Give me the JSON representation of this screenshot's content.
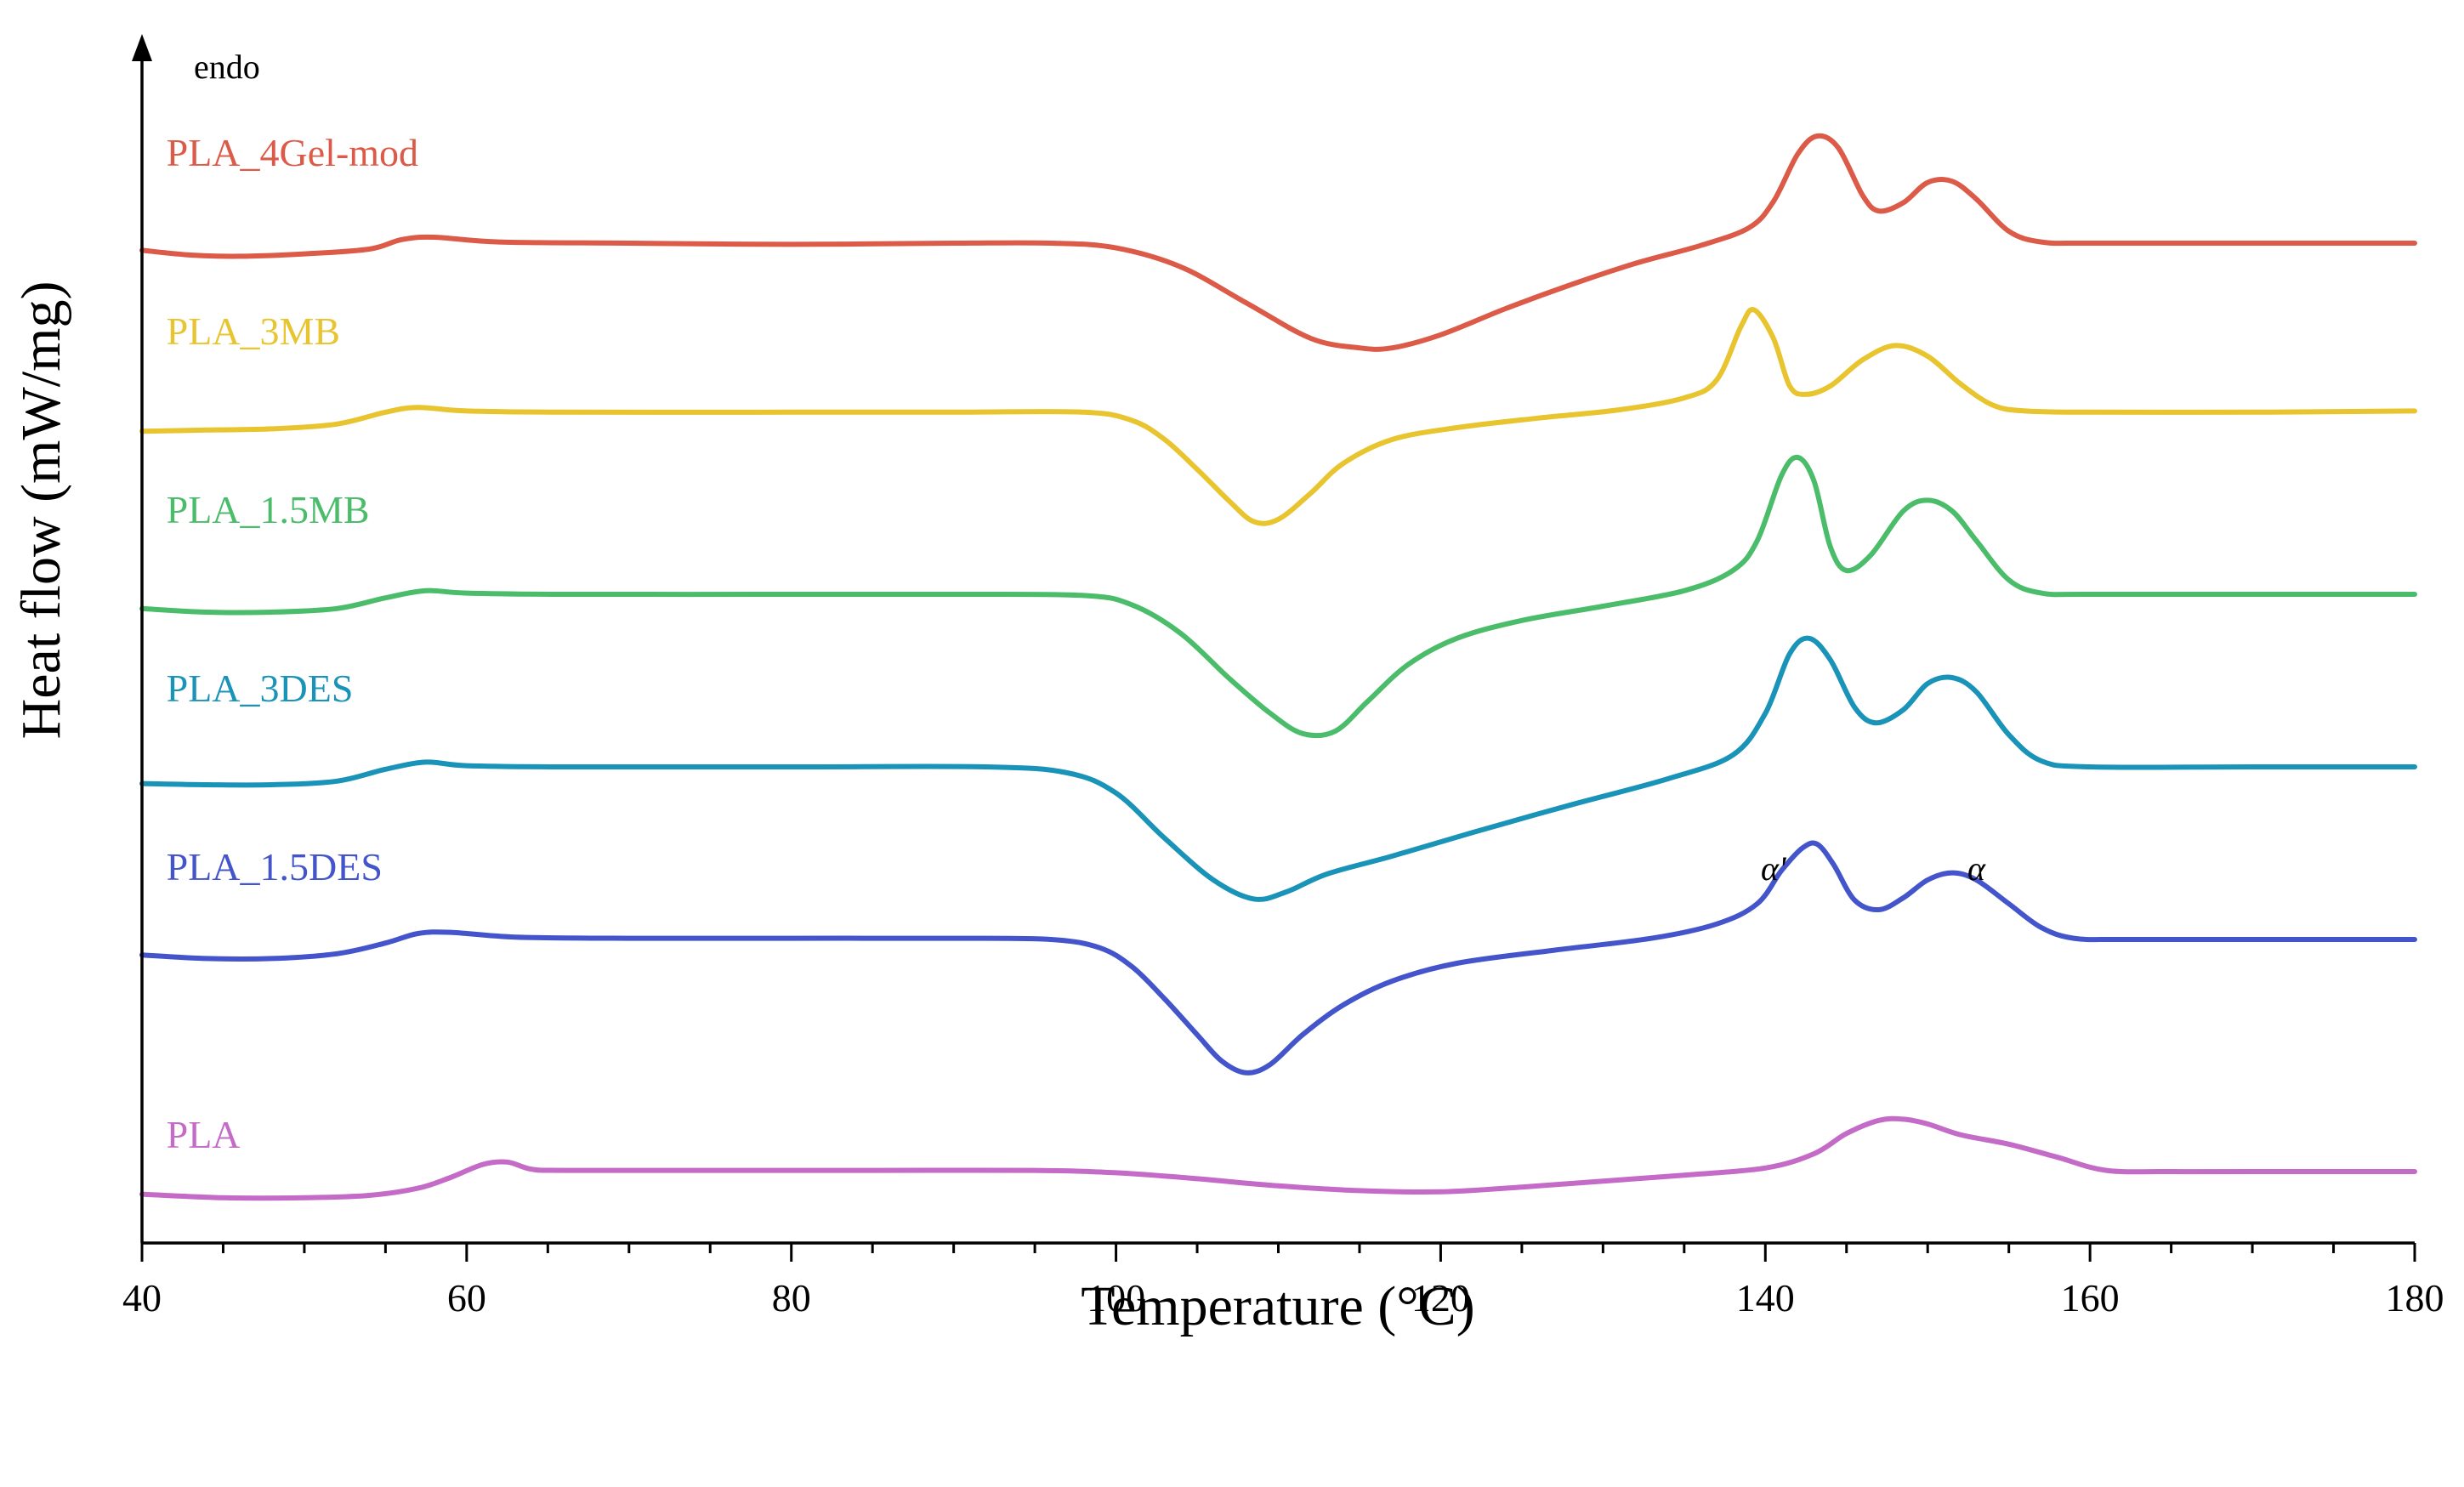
{
  "chart_data": {
    "type": "line",
    "title": "",
    "xlabel": "Temperature (°C)",
    "ylabel": "Heat flow (mW/mg)",
    "xlim": [
      40,
      180
    ],
    "xticks": [
      40,
      60,
      80,
      100,
      120,
      140,
      160,
      180
    ],
    "xtick_labels": [
      "40",
      "60",
      "80",
      "100",
      "120",
      "140",
      "160",
      "180"
    ],
    "ylim": [
      0,
      100
    ],
    "yticks_shown": false,
    "endo_label": "endo",
    "annotations": [
      {
        "text": "α'",
        "x": 140.5,
        "y": 30.5
      },
      {
        "text": "α",
        "x": 153,
        "y": 30.5
      }
    ],
    "series": [
      {
        "name": "PLA_4Gel-mod",
        "color": "#dc5a48",
        "label_x": 41.5,
        "label_y": 90.5,
        "points": [
          [
            40,
            83.4
          ],
          [
            43,
            83.0
          ],
          [
            46,
            82.9
          ],
          [
            50,
            83.1
          ],
          [
            54,
            83.5
          ],
          [
            56,
            84.3
          ],
          [
            58,
            84.5
          ],
          [
            62,
            84.1
          ],
          [
            70,
            84.0
          ],
          [
            80,
            83.9
          ],
          [
            90,
            84.0
          ],
          [
            96,
            84.0
          ],
          [
            100,
            83.6
          ],
          [
            104,
            82.0
          ],
          [
            108,
            79.0
          ],
          [
            112,
            76.0
          ],
          [
            115,
            75.2
          ],
          [
            117,
            75.2
          ],
          [
            120,
            76.3
          ],
          [
            124,
            78.5
          ],
          [
            128,
            80.5
          ],
          [
            132,
            82.3
          ],
          [
            136,
            83.8
          ],
          [
            139,
            85.3
          ],
          [
            140.5,
            87.5
          ],
          [
            142,
            91.5
          ],
          [
            143.2,
            93.0
          ],
          [
            144.5,
            92.0
          ],
          [
            146,
            88.0
          ],
          [
            147,
            86.7
          ],
          [
            148.5,
            87.4
          ],
          [
            150,
            89.1
          ],
          [
            151.5,
            89.2
          ],
          [
            153,
            87.7
          ],
          [
            155,
            85.0
          ],
          [
            157,
            84.1
          ],
          [
            160,
            84.0
          ],
          [
            170,
            84.0
          ],
          [
            180,
            84.0
          ]
        ]
      },
      {
        "name": "PLA_3MB",
        "color": "#e8c42f",
        "label_x": 41.5,
        "label_y": 75.5,
        "points": [
          [
            40,
            68.2
          ],
          [
            44,
            68.3
          ],
          [
            48,
            68.4
          ],
          [
            52,
            68.8
          ],
          [
            55,
            69.8
          ],
          [
            57,
            70.2
          ],
          [
            60,
            69.9
          ],
          [
            66,
            69.8
          ],
          [
            80,
            69.8
          ],
          [
            90,
            69.8
          ],
          [
            98,
            69.8
          ],
          [
            101,
            69.1
          ],
          [
            103,
            67.5
          ],
          [
            105,
            65.0
          ],
          [
            107,
            62.3
          ],
          [
            108.5,
            60.6
          ],
          [
            110,
            60.8
          ],
          [
            112,
            63.0
          ],
          [
            114,
            65.5
          ],
          [
            117,
            67.5
          ],
          [
            121,
            68.5
          ],
          [
            126,
            69.3
          ],
          [
            131,
            70.0
          ],
          [
            135,
            71.0
          ],
          [
            137,
            72.5
          ],
          [
            138.5,
            77.0
          ],
          [
            139.3,
            78.4
          ],
          [
            140.5,
            76.0
          ],
          [
            141.5,
            72.0
          ],
          [
            142.5,
            71.3
          ],
          [
            144,
            72.0
          ],
          [
            146,
            74.2
          ],
          [
            148,
            75.4
          ],
          [
            150,
            74.5
          ],
          [
            152,
            72.2
          ],
          [
            154,
            70.4
          ],
          [
            156,
            69.9
          ],
          [
            160,
            69.8
          ],
          [
            170,
            69.8
          ],
          [
            180,
            69.9
          ]
        ]
      },
      {
        "name": "PLA_1.5MB",
        "color": "#4bbd6a",
        "label_x": 41.5,
        "label_y": 60.5,
        "points": [
          [
            40,
            53.3
          ],
          [
            44,
            53.0
          ],
          [
            48,
            53.0
          ],
          [
            52,
            53.3
          ],
          [
            55,
            54.2
          ],
          [
            57.5,
            54.8
          ],
          [
            60,
            54.6
          ],
          [
            66,
            54.5
          ],
          [
            80,
            54.5
          ],
          [
            90,
            54.5
          ],
          [
            98,
            54.4
          ],
          [
            101,
            53.6
          ],
          [
            104,
            51.2
          ],
          [
            107,
            47.4
          ],
          [
            109.5,
            44.5
          ],
          [
            111.5,
            42.8
          ],
          [
            113.5,
            43.0
          ],
          [
            115.5,
            45.5
          ],
          [
            118,
            48.6
          ],
          [
            121,
            50.8
          ],
          [
            125,
            52.3
          ],
          [
            130,
            53.5
          ],
          [
            135,
            54.8
          ],
          [
            138,
            56.5
          ],
          [
            139.5,
            59.0
          ],
          [
            141,
            64.5
          ],
          [
            142,
            66.0
          ],
          [
            143,
            64.0
          ],
          [
            144,
            58.5
          ],
          [
            145,
            56.5
          ],
          [
            146.5,
            57.8
          ],
          [
            148.5,
            61.5
          ],
          [
            150,
            62.4
          ],
          [
            151.5,
            61.5
          ],
          [
            153,
            59.0
          ],
          [
            155,
            55.7
          ],
          [
            157,
            54.6
          ],
          [
            160,
            54.5
          ],
          [
            170,
            54.5
          ],
          [
            180,
            54.5
          ]
        ]
      },
      {
        "name": "PLA_3DES",
        "color": "#1a93b8",
        "label_x": 41.5,
        "label_y": 45.5,
        "points": [
          [
            40,
            38.6
          ],
          [
            44,
            38.5
          ],
          [
            48,
            38.5
          ],
          [
            52,
            38.8
          ],
          [
            55,
            39.8
          ],
          [
            57.5,
            40.4
          ],
          [
            60,
            40.1
          ],
          [
            66,
            40.0
          ],
          [
            80,
            40.0
          ],
          [
            92,
            40.0
          ],
          [
            97,
            39.5
          ],
          [
            100,
            37.8
          ],
          [
            103,
            34.0
          ],
          [
            106,
            30.5
          ],
          [
            108.5,
            28.9
          ],
          [
            110.5,
            29.5
          ],
          [
            113,
            31.0
          ],
          [
            117,
            32.5
          ],
          [
            122,
            34.5
          ],
          [
            128,
            36.8
          ],
          [
            134,
            39.0
          ],
          [
            138,
            41.0
          ],
          [
            140,
            44.5
          ],
          [
            141.5,
            49.5
          ],
          [
            142.7,
            50.8
          ],
          [
            144,
            49.0
          ],
          [
            145.5,
            45.0
          ],
          [
            146.8,
            43.7
          ],
          [
            148.5,
            44.8
          ],
          [
            150,
            47.0
          ],
          [
            151.5,
            47.5
          ],
          [
            153,
            46.3
          ],
          [
            155,
            42.7
          ],
          [
            157,
            40.5
          ],
          [
            160,
            40.0
          ],
          [
            170,
            40.0
          ],
          [
            180,
            40.0
          ]
        ]
      },
      {
        "name": "PLA_1.5DES",
        "color": "#4455cc",
        "label_x": 41.5,
        "label_y": 30.5,
        "points": [
          [
            40,
            24.2
          ],
          [
            44,
            23.9
          ],
          [
            48,
            23.9
          ],
          [
            52,
            24.3
          ],
          [
            55,
            25.2
          ],
          [
            57,
            26.0
          ],
          [
            59,
            26.1
          ],
          [
            63,
            25.7
          ],
          [
            70,
            25.6
          ],
          [
            80,
            25.6
          ],
          [
            90,
            25.6
          ],
          [
            96,
            25.5
          ],
          [
            99,
            24.8
          ],
          [
            101,
            23.2
          ],
          [
            103,
            20.5
          ],
          [
            105,
            17.5
          ],
          [
            106.5,
            15.3
          ],
          [
            108,
            14.3
          ],
          [
            109.5,
            15.0
          ],
          [
            111.5,
            17.5
          ],
          [
            114,
            20.0
          ],
          [
            117,
            22.0
          ],
          [
            121,
            23.5
          ],
          [
            127,
            24.6
          ],
          [
            133,
            25.6
          ],
          [
            137,
            26.8
          ],
          [
            139.5,
            28.5
          ],
          [
            141,
            31.3
          ],
          [
            142.3,
            33.2
          ],
          [
            143.2,
            33.5
          ],
          [
            144.2,
            31.8
          ],
          [
            145.5,
            28.8
          ],
          [
            147,
            28.0
          ],
          [
            148.5,
            29.0
          ],
          [
            150,
            30.5
          ],
          [
            151.5,
            31.1
          ],
          [
            153,
            30.5
          ],
          [
            155,
            28.5
          ],
          [
            157,
            26.5
          ],
          [
            159,
            25.6
          ],
          [
            162,
            25.5
          ],
          [
            170,
            25.5
          ],
          [
            180,
            25.5
          ]
        ]
      },
      {
        "name": "PLA",
        "color": "#c46ac7",
        "label_x": 41.5,
        "label_y": 8.0,
        "points": [
          [
            40,
            4.1
          ],
          [
            45,
            3.8
          ],
          [
            50,
            3.8
          ],
          [
            54,
            4.0
          ],
          [
            57,
            4.6
          ],
          [
            59,
            5.5
          ],
          [
            61,
            6.6
          ],
          [
            62.5,
            6.8
          ],
          [
            64,
            6.2
          ],
          [
            66,
            6.1
          ],
          [
            75,
            6.1
          ],
          [
            85,
            6.1
          ],
          [
            95,
            6.1
          ],
          [
            100,
            5.9
          ],
          [
            105,
            5.4
          ],
          [
            110,
            4.8
          ],
          [
            115,
            4.4
          ],
          [
            120,
            4.3
          ],
          [
            125,
            4.7
          ],
          [
            130,
            5.2
          ],
          [
            135,
            5.7
          ],
          [
            140,
            6.3
          ],
          [
            143,
            7.5
          ],
          [
            145,
            9.2
          ],
          [
            147,
            10.3
          ],
          [
            148.5,
            10.4
          ],
          [
            150,
            10.0
          ],
          [
            152,
            9.1
          ],
          [
            155,
            8.3
          ],
          [
            158,
            7.2
          ],
          [
            161,
            6.1
          ],
          [
            165,
            6.0
          ],
          [
            170,
            6.0
          ],
          [
            180,
            6.0
          ]
        ]
      }
    ]
  }
}
